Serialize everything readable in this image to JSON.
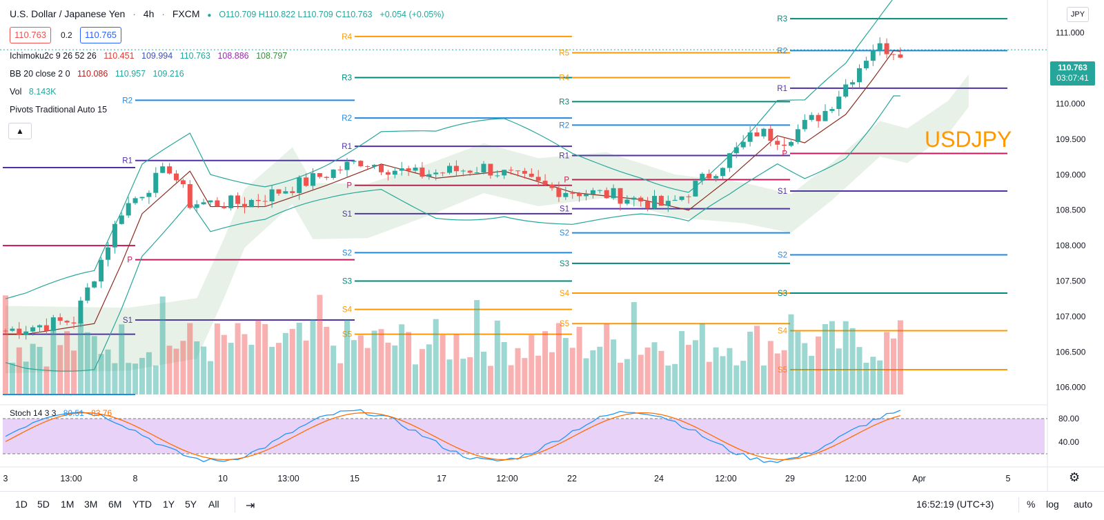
{
  "header": {
    "symbol": "U.S. Dollar / Japanese Yen",
    "interval": "4h",
    "exchange": "FXCM",
    "ohlc": "O110.709  H110.822  L110.709  C110.763",
    "change": "+0.054 (+0.05%)"
  },
  "prices": {
    "bid": "110.763",
    "spread": "0.2",
    "ask": "110.765"
  },
  "indicators": {
    "ichimoku": {
      "label": "Ichimoku2c 9 26 52 26",
      "values": [
        "110.451",
        "109.994",
        "110.763",
        "108.886",
        "108.797"
      ],
      "colors": [
        "#e53935",
        "#3f51b5",
        "#26a69a",
        "#9c27b0",
        "#388e3c"
      ]
    },
    "bb": {
      "label": "BB 20 close 2 0",
      "values": [
        "110.086",
        "110.957",
        "109.216"
      ],
      "colors": [
        "#b71c1c",
        "#26a69a",
        "#26a69a"
      ]
    },
    "vol": {
      "label": "Vol",
      "value": "8.143K"
    },
    "pivots": {
      "label": "Pivots Traditional Auto 15"
    },
    "stoch": {
      "label": "Stoch 14 3 3",
      "k": "80.51",
      "d": "83.76"
    }
  },
  "currency_tag": "JPY",
  "last_price": {
    "price": "110.763",
    "countdown": "03:07:41"
  },
  "symbol_label": "USDJPY",
  "price_axis": [
    "111.000",
    "110.500",
    "110.000",
    "109.500",
    "109.000",
    "108.500",
    "108.000",
    "107.500",
    "107.000",
    "106.500",
    "106.000"
  ],
  "stoch_axis": [
    "80.00",
    "40.00"
  ],
  "time_axis": [
    "3",
    "13:00",
    "8",
    "10",
    "13:00",
    "15",
    "17",
    "12:00",
    "22",
    "24",
    "12:00",
    "29",
    "12:00",
    "Apr",
    "5"
  ],
  "pivot_labels": [
    "R5",
    "R4",
    "R3",
    "R2",
    "R1",
    "P",
    "S1",
    "S2",
    "S3",
    "S4",
    "S5"
  ],
  "toolbar": {
    "ranges": [
      "1D",
      "5D",
      "1M",
      "3M",
      "6M",
      "YTD",
      "1Y",
      "5Y",
      "All"
    ],
    "time": "16:52:19 (UTC+3)",
    "percent": "%",
    "log": "log",
    "auto": "auto"
  },
  "colors": {
    "up": "#26a69a",
    "down": "#ef5350",
    "accent": "#ff9800",
    "stoch_bg": "#e1c3f5"
  }
}
